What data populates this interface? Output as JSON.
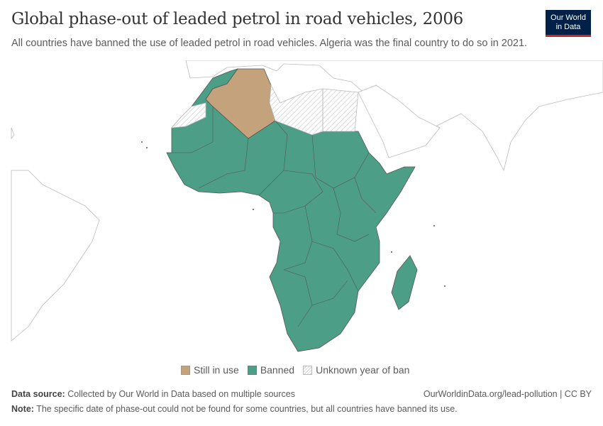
{
  "header": {
    "title": "Global phase-out of leaded petrol in road vehicles, 2006",
    "subtitle": "All countries have banned the use of leaded petrol in road vehicles. Algeria was the final country to do so in 2021.",
    "logo_text": "Our World in Data"
  },
  "map": {
    "region": "Africa",
    "year": "2006",
    "categories": {
      "Still in use": [
        "Algeria"
      ],
      "Unknown year of ban": [
        "Libya",
        "Egypt",
        "Western Sahara"
      ],
      "Banned": [
        "Rest of Africa"
      ]
    }
  },
  "legend": {
    "items": [
      {
        "label": "Still in use",
        "color": "#c4a27c"
      },
      {
        "label": "Banned",
        "color": "#4c9f86"
      },
      {
        "label": "Unknown year of ban",
        "color": "hatched"
      }
    ]
  },
  "footer": {
    "source_label": "Data source:",
    "source_text": "Collected by Our World in Data based on multiple sources",
    "url": "OurWorldinData.org/lead-pollution | CC BY",
    "note_label": "Note:",
    "note_text": "The specific date of phase-out could not be found for some countries, but all countries have banned its use."
  },
  "colors": {
    "still_in_use": "#c4a27c",
    "banned": "#4c9f86",
    "border": "#555555",
    "no_data_stroke": "#bbbbbb"
  }
}
